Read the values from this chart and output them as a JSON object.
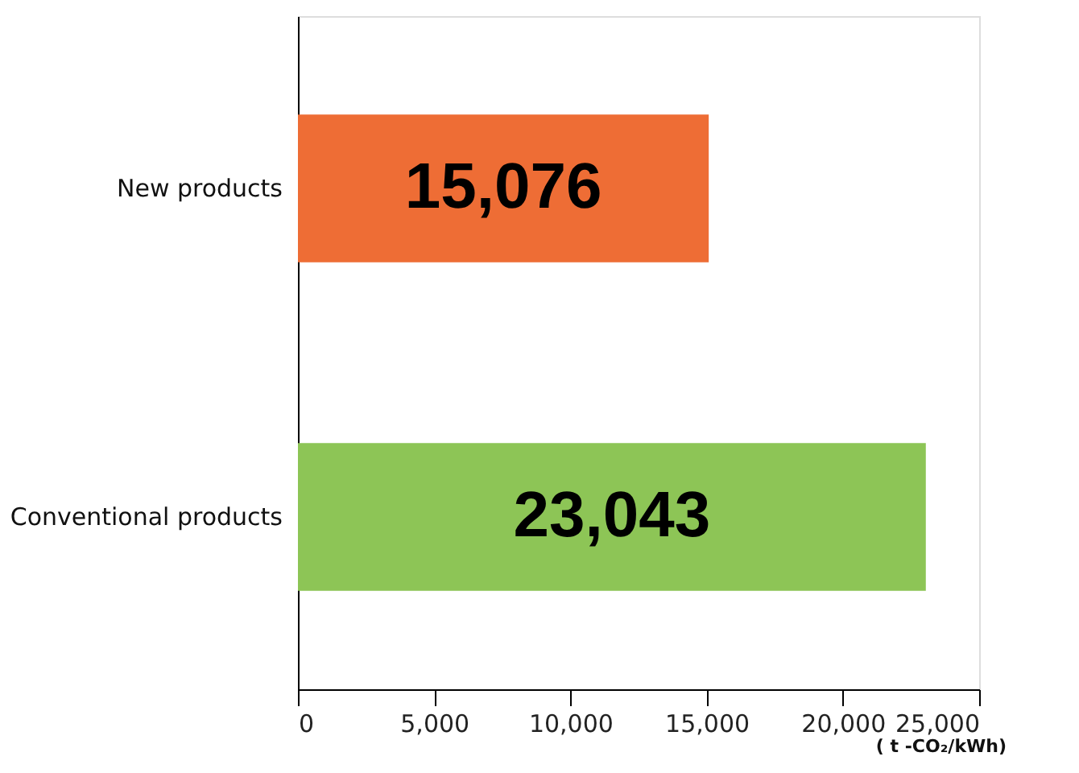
{
  "chart_data": {
    "type": "bar",
    "orientation": "horizontal",
    "categories": [
      "New products",
      "Conventional products"
    ],
    "values": [
      15076,
      23043
    ],
    "colors": [
      "#ee6d35",
      "#8dc556"
    ],
    "value_labels": [
      "15,076",
      "23,043"
    ],
    "xlabel": "( t -CO₂/kWh)",
    "xlim": [
      0,
      25000
    ],
    "xticks": [
      0,
      {
        "value": 5000,
        "label": "5,000"
      },
      {
        "value": 10000,
        "label": "10,000"
      },
      {
        "value": 15000,
        "label": "15,000"
      },
      {
        "value": 20000,
        "label": "20,000"
      },
      {
        "value": 25000,
        "label": "25,000"
      }
    ],
    "grid": false,
    "legend": false
  }
}
